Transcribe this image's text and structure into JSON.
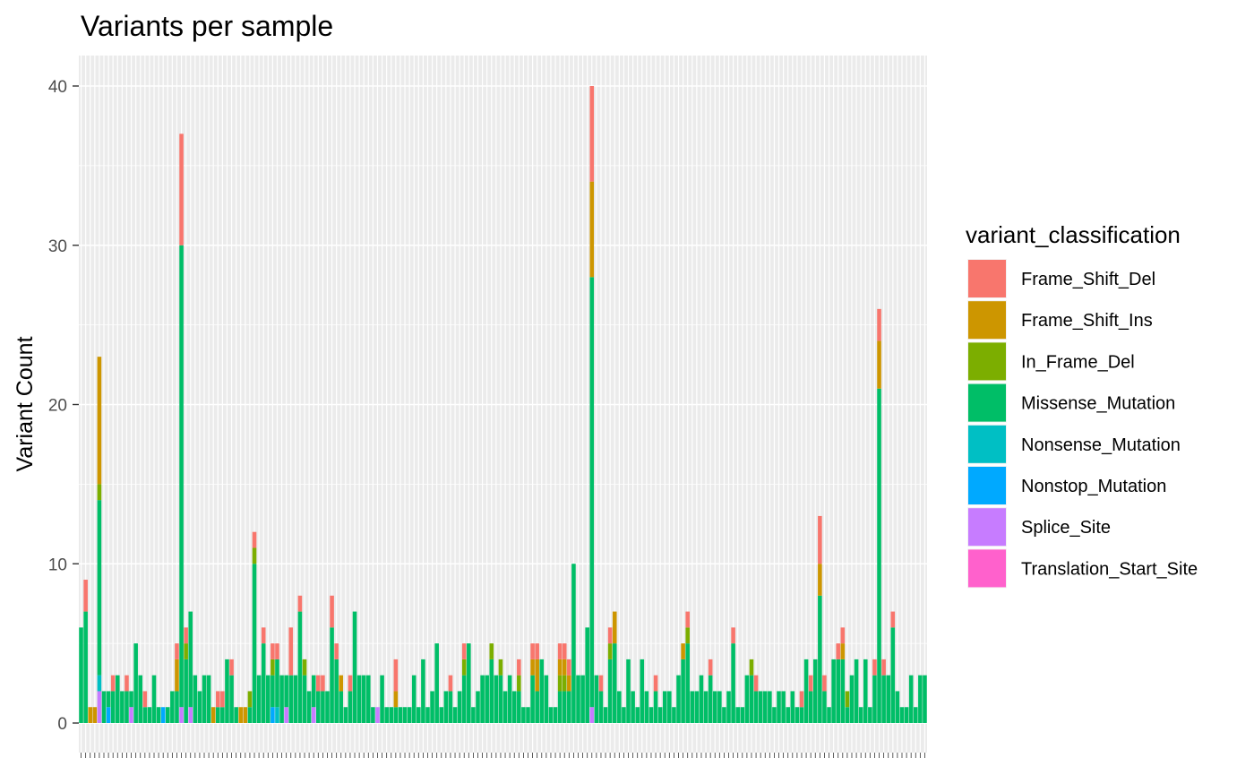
{
  "chart_data": {
    "type": "bar",
    "stacked": true,
    "title": "Variants per sample",
    "xlabel": "",
    "ylabel": "Variant Count",
    "ylim": [
      0,
      42
    ],
    "yticks": [
      0,
      10,
      20,
      30,
      40
    ],
    "grid": true,
    "legend": {
      "title": "variant_classification",
      "position": "right"
    },
    "series": [
      {
        "name": "Frame_Shift_Del",
        "color": "#F8766D"
      },
      {
        "name": "Frame_Shift_Ins",
        "color": "#CD9600"
      },
      {
        "name": "In_Frame_Del",
        "color": "#7CAE00"
      },
      {
        "name": "Missense_Mutation",
        "color": "#00BE67"
      },
      {
        "name": "Nonsense_Mutation",
        "color": "#00BFC4"
      },
      {
        "name": "Nonstop_Mutation",
        "color": "#00A9FF"
      },
      {
        "name": "Splice_Site",
        "color": "#C77CFF"
      },
      {
        "name": "Translation_Start_Site",
        "color": "#FF61CC"
      }
    ],
    "stack_order": [
      "Frame_Shift_Del",
      "Frame_Shift_Ins",
      "In_Frame_Del",
      "Missense_Mutation",
      "Nonsense_Mutation",
      "Nonstop_Mutation",
      "Splice_Site",
      "Translation_Start_Site"
    ],
    "samples": [
      {
        "Missense_Mutation": 6
      },
      {
        "Frame_Shift_Del": 2,
        "Missense_Mutation": 7
      },
      {
        "Frame_Shift_Ins": 1
      },
      {
        "Frame_Shift_Ins": 1
      },
      {
        "Frame_Shift_Ins": 8,
        "In_Frame_Del": 1,
        "Missense_Mutation": 11,
        "Nonsense_Mutation": 1,
        "Splice_Site": 2
      },
      {
        "Missense_Mutation": 2
      },
      {
        "Missense_Mutation": 1,
        "Nonstop_Mutation": 1
      },
      {
        "Frame_Shift_Del": 1,
        "Missense_Mutation": 2
      },
      {
        "Missense_Mutation": 3
      },
      {
        "Missense_Mutation": 2
      },
      {
        "Frame_Shift_Del": 1,
        "Missense_Mutation": 2
      },
      {
        "Missense_Mutation": 1,
        "Splice_Site": 1
      },
      {
        "Missense_Mutation": 5
      },
      {
        "Missense_Mutation": 3
      },
      {
        "Frame_Shift_Del": 1,
        "Missense_Mutation": 1
      },
      {
        "Missense_Mutation": 1
      },
      {
        "Missense_Mutation": 3
      },
      {
        "Missense_Mutation": 1
      },
      {
        "Nonstop_Mutation": 1
      },
      {
        "Missense_Mutation": 1
      },
      {
        "Missense_Mutation": 2
      },
      {
        "Frame_Shift_Del": 1,
        "Frame_Shift_Ins": 2,
        "Missense_Mutation": 2
      },
      {
        "Frame_Shift_Del": 7,
        "Missense_Mutation": 29,
        "Splice_Site": 1
      },
      {
        "Frame_Shift_Del": 1,
        "In_Frame_Del": 1,
        "Missense_Mutation": 4
      },
      {
        "Missense_Mutation": 6,
        "Splice_Site": 1
      },
      {
        "Missense_Mutation": 3
      },
      {
        "Missense_Mutation": 2
      },
      {
        "Missense_Mutation": 3
      },
      {
        "Missense_Mutation": 3
      },
      {
        "Frame_Shift_Ins": 1
      },
      {
        "Frame_Shift_Del": 1,
        "Missense_Mutation": 1
      },
      {
        "Frame_Shift_Del": 1,
        "Missense_Mutation": 1
      },
      {
        "Missense_Mutation": 4
      },
      {
        "Frame_Shift_Del": 1,
        "Missense_Mutation": 3
      },
      {
        "Missense_Mutation": 1
      },
      {
        "Frame_Shift_Ins": 1
      },
      {
        "Frame_Shift_Ins": 1
      },
      {
        "In_Frame_Del": 1,
        "Missense_Mutation": 1
      },
      {
        "Frame_Shift_Del": 1,
        "In_Frame_Del": 1,
        "Missense_Mutation": 10
      },
      {
        "Missense_Mutation": 3
      },
      {
        "Frame_Shift_Del": 1,
        "Missense_Mutation": 5
      },
      {
        "Missense_Mutation": 3
      },
      {
        "Frame_Shift_Del": 1,
        "In_Frame_Del": 1,
        "Missense_Mutation": 2,
        "Nonstop_Mutation": 1
      },
      {
        "Frame_Shift_Del": 1,
        "Missense_Mutation": 3,
        "Nonsense_Mutation": 1
      },
      {
        "Missense_Mutation": 3
      },
      {
        "Missense_Mutation": 2,
        "Splice_Site": 1
      },
      {
        "Frame_Shift_Del": 3,
        "Missense_Mutation": 3
      },
      {
        "Missense_Mutation": 3
      },
      {
        "Frame_Shift_Del": 1,
        "Missense_Mutation": 7
      },
      {
        "In_Frame_Del": 1,
        "Missense_Mutation": 3
      },
      {
        "Missense_Mutation": 2
      },
      {
        "Missense_Mutation": 2,
        "Splice_Site": 1
      },
      {
        "Frame_Shift_Del": 1,
        "Missense_Mutation": 2
      },
      {
        "Frame_Shift_Del": 1,
        "Missense_Mutation": 2
      },
      {
        "Missense_Mutation": 2
      },
      {
        "Frame_Shift_Del": 2,
        "Missense_Mutation": 6
      },
      {
        "Frame_Shift_Del": 1,
        "Missense_Mutation": 4
      },
      {
        "Frame_Shift_Ins": 1,
        "Missense_Mutation": 2
      },
      {
        "Missense_Mutation": 1
      },
      {
        "Frame_Shift_Del": 1,
        "Missense_Mutation": 2
      },
      {
        "Missense_Mutation": 7
      },
      {
        "Missense_Mutation": 3
      },
      {
        "Missense_Mutation": 3
      },
      {
        "Missense_Mutation": 3
      },
      {
        "Missense_Mutation": 1
      },
      {
        "Splice_Site": 1
      },
      {
        "Missense_Mutation": 3
      },
      {
        "Missense_Mutation": 1
      },
      {
        "Missense_Mutation": 1
      },
      {
        "Frame_Shift_Del": 2,
        "Frame_Shift_Ins": 1,
        "Missense_Mutation": 1
      },
      {
        "Missense_Mutation": 1
      },
      {
        "Missense_Mutation": 1
      },
      {
        "Missense_Mutation": 1
      },
      {
        "Missense_Mutation": 3
      },
      {
        "Missense_Mutation": 1
      },
      {
        "Missense_Mutation": 4
      },
      {
        "Missense_Mutation": 1
      },
      {
        "Missense_Mutation": 2
      },
      {
        "Missense_Mutation": 5
      },
      {
        "Missense_Mutation": 1
      },
      {
        "Missense_Mutation": 2
      },
      {
        "Frame_Shift_Del": 1,
        "Missense_Mutation": 2
      },
      {
        "Missense_Mutation": 1
      },
      {
        "Missense_Mutation": 2
      },
      {
        "Frame_Shift_Del": 1,
        "In_Frame_Del": 1,
        "Missense_Mutation": 3
      },
      {
        "Missense_Mutation": 5
      },
      {
        "Missense_Mutation": 1
      },
      {
        "Missense_Mutation": 2
      },
      {
        "Missense_Mutation": 3
      },
      {
        "Missense_Mutation": 3
      },
      {
        "In_Frame_Del": 1,
        "Missense_Mutation": 4
      },
      {
        "Missense_Mutation": 3
      },
      {
        "In_Frame_Del": 1,
        "Missense_Mutation": 3
      },
      {
        "Missense_Mutation": 2
      },
      {
        "Missense_Mutation": 3
      },
      {
        "Missense_Mutation": 2
      },
      {
        "Frame_Shift_Del": 1,
        "In_Frame_Del": 1,
        "Missense_Mutation": 2
      },
      {
        "Missense_Mutation": 1
      },
      {
        "Missense_Mutation": 1
      },
      {
        "Frame_Shift_Del": 1,
        "Frame_Shift_Ins": 1,
        "Missense_Mutation": 3
      },
      {
        "Frame_Shift_Del": 1,
        "Frame_Shift_Ins": 2,
        "Missense_Mutation": 2
      },
      {
        "Missense_Mutation": 4
      },
      {
        "Missense_Mutation": 3
      },
      {
        "Missense_Mutation": 1
      },
      {
        "Missense_Mutation": 1
      },
      {
        "Frame_Shift_Del": 1,
        "Frame_Shift_Ins": 1,
        "In_Frame_Del": 1,
        "Missense_Mutation": 2
      },
      {
        "Frame_Shift_Del": 1,
        "Frame_Shift_Ins": 1,
        "In_Frame_Del": 1,
        "Missense_Mutation": 2
      },
      {
        "Frame_Shift_Del": 1,
        "Frame_Shift_Ins": 1,
        "Missense_Mutation": 2
      },
      {
        "Missense_Mutation": 10
      },
      {
        "Missense_Mutation": 3
      },
      {
        "Missense_Mutation": 3
      },
      {
        "Missense_Mutation": 6
      },
      {
        "Frame_Shift_Del": 6,
        "Frame_Shift_Ins": 6,
        "Missense_Mutation": 27,
        "Splice_Site": 1
      },
      {
        "Missense_Mutation": 3
      },
      {
        "Frame_Shift_Del": 1,
        "Missense_Mutation": 2
      },
      {
        "Missense_Mutation": 1
      },
      {
        "Frame_Shift_Del": 1,
        "In_Frame_Del": 1,
        "Missense_Mutation": 4
      },
      {
        "Frame_Shift_Ins": 2,
        "Missense_Mutation": 5
      },
      {
        "Missense_Mutation": 2
      },
      {
        "Missense_Mutation": 1
      },
      {
        "Missense_Mutation": 4
      },
      {
        "Missense_Mutation": 2
      },
      {
        "Missense_Mutation": 1
      },
      {
        "Missense_Mutation": 4
      },
      {
        "Missense_Mutation": 2
      },
      {
        "Missense_Mutation": 1
      },
      {
        "Frame_Shift_Del": 1,
        "Missense_Mutation": 2
      },
      {
        "Missense_Mutation": 1
      },
      {
        "Missense_Mutation": 2
      },
      {
        "Missense_Mutation": 2
      },
      {
        "Missense_Mutation": 1
      },
      {
        "Missense_Mutation": 3
      },
      {
        "Frame_Shift_Ins": 1,
        "Missense_Mutation": 4
      },
      {
        "Frame_Shift_Del": 1,
        "In_Frame_Del": 1,
        "Missense_Mutation": 5
      },
      {
        "Missense_Mutation": 2
      },
      {
        "Missense_Mutation": 2
      },
      {
        "Missense_Mutation": 3
      },
      {
        "Missense_Mutation": 2
      },
      {
        "Frame_Shift_Del": 1,
        "Missense_Mutation": 3
      },
      {
        "Missense_Mutation": 2
      },
      {
        "Missense_Mutation": 2
      },
      {
        "Missense_Mutation": 1
      },
      {
        "Missense_Mutation": 2
      },
      {
        "Frame_Shift_Del": 1,
        "Missense_Mutation": 5
      },
      {
        "Missense_Mutation": 1
      },
      {
        "Missense_Mutation": 1
      },
      {
        "Missense_Mutation": 3
      },
      {
        "In_Frame_Del": 1,
        "Missense_Mutation": 3
      },
      {
        "Frame_Shift_Del": 1,
        "Missense_Mutation": 2
      },
      {
        "Missense_Mutation": 2
      },
      {
        "Missense_Mutation": 2
      },
      {
        "Missense_Mutation": 2
      },
      {
        "Missense_Mutation": 1
      },
      {
        "Missense_Mutation": 2
      },
      {
        "Missense_Mutation": 2
      },
      {
        "Missense_Mutation": 1
      },
      {
        "Missense_Mutation": 2
      },
      {
        "Missense_Mutation": 1
      },
      {
        "Frame_Shift_Del": 1,
        "Missense_Mutation": 1
      },
      {
        "Missense_Mutation": 4
      },
      {
        "Frame_Shift_Del": 1,
        "Missense_Mutation": 2
      },
      {
        "Missense_Mutation": 4
      },
      {
        "Frame_Shift_Del": 3,
        "Frame_Shift_Ins": 2,
        "Missense_Mutation": 8
      },
      {
        "Frame_Shift_Del": 1,
        "Missense_Mutation": 2
      },
      {
        "Missense_Mutation": 1
      },
      {
        "Missense_Mutation": 4
      },
      {
        "Frame_Shift_Del": 1,
        "Missense_Mutation": 4
      },
      {
        "Frame_Shift_Del": 1,
        "Frame_Shift_Ins": 1,
        "Missense_Mutation": 4
      },
      {
        "In_Frame_Del": 1,
        "Missense_Mutation": 1
      },
      {
        "Missense_Mutation": 3
      },
      {
        "Missense_Mutation": 4
      },
      {
        "Missense_Mutation": 1
      },
      {
        "Missense_Mutation": 4
      },
      {
        "Missense_Mutation": 1
      },
      {
        "Frame_Shift_Del": 1,
        "Missense_Mutation": 3
      },
      {
        "Frame_Shift_Del": 2,
        "Frame_Shift_Ins": 3,
        "Missense_Mutation": 21
      },
      {
        "Frame_Shift_Del": 1,
        "Missense_Mutation": 3
      },
      {
        "Missense_Mutation": 3
      },
      {
        "Frame_Shift_Del": 1,
        "Missense_Mutation": 6
      },
      {
        "Missense_Mutation": 2
      },
      {
        "Missense_Mutation": 1
      },
      {
        "Missense_Mutation": 1
      },
      {
        "Missense_Mutation": 3
      },
      {
        "Missense_Mutation": 1
      },
      {
        "Missense_Mutation": 3
      },
      {
        "Missense_Mutation": 3
      }
    ]
  }
}
